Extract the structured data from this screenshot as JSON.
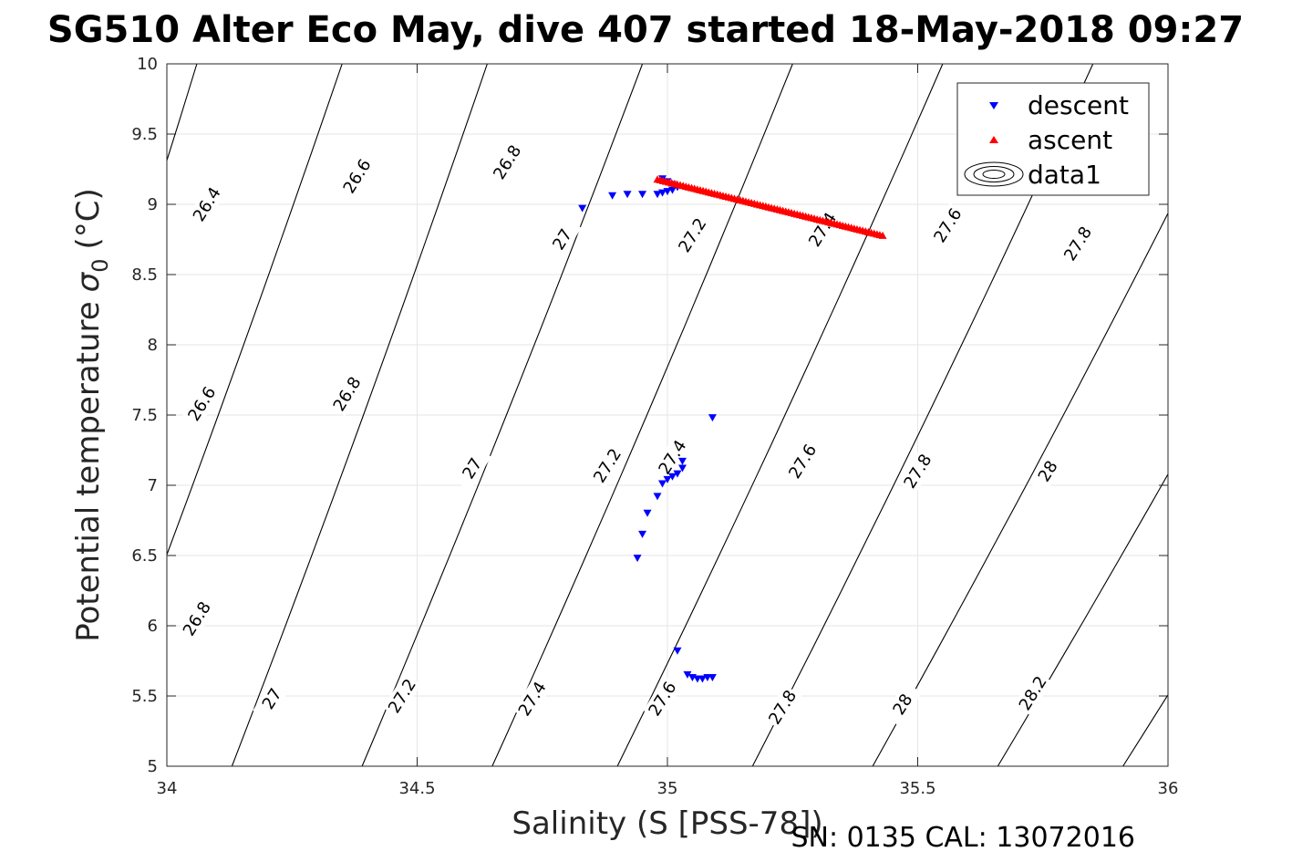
{
  "chart_data": {
    "type": "scatter",
    "title": "SG510 Alter Eco May, dive 407 started 18-May-2018 09:27",
    "xlabel": "Salinity (S [PSS-78])",
    "ylabel": "Potential temperature",
    "ylabel_symbol": "σ",
    "ylabel_subscript": "0",
    "ylabel_unit": "(°C)",
    "xlim": [
      34,
      36
    ],
    "ylim": [
      5,
      10
    ],
    "xticks": [
      34,
      34.5,
      35,
      35.5,
      36
    ],
    "xtick_labels": [
      "34",
      "34.5",
      "35",
      "35.5",
      "36"
    ],
    "yticks": [
      5,
      5.5,
      6,
      6.5,
      7,
      7.5,
      8,
      8.5,
      9,
      9.5,
      10
    ],
    "ytick_labels": [
      "5",
      "5.5",
      "6",
      "6.5",
      "7",
      "7.5",
      "8",
      "8.5",
      "9",
      "9.5",
      "10"
    ],
    "grid": true,
    "legend_position": "top-right",
    "legend": [
      {
        "label": "descent",
        "marker": "triangle-down",
        "color": "#0000ff"
      },
      {
        "label": "ascent",
        "marker": "triangle-up",
        "color": "#ff0000"
      },
      {
        "label": "data1",
        "marker": "contour",
        "color": "#000000"
      }
    ],
    "footer": "SN: 0135  CAL: 13072016",
    "contours": {
      "color": "#000000",
      "levels": [
        {
          "x_at_5": 33.6,
          "x_at_10": 34.06
        },
        {
          "x_at_5": 33.84,
          "x_at_10": 34.35
        },
        {
          "x_at_5": 34.13,
          "x_at_10": 34.64
        },
        {
          "x_at_5": 34.39,
          "x_at_10": 34.95
        },
        {
          "x_at_5": 34.65,
          "x_at_10": 35.25
        },
        {
          "x_at_5": 34.9,
          "x_at_10": 35.55
        },
        {
          "x_at_5": 35.17,
          "x_at_10": 35.85
        },
        {
          "x_at_5": 35.41,
          "x_at_10": 36.15
        },
        {
          "x_at_5": 35.66,
          "x_at_10": 36.45
        },
        {
          "x_at_5": 35.91,
          "x_at_10": 36.75
        }
      ],
      "labels": [
        {
          "text": "26.4",
          "s": 34.08,
          "t": 9.0
        },
        {
          "text": "26.6",
          "s": 34.38,
          "t": 9.2
        },
        {
          "text": "26.8",
          "s": 34.68,
          "t": 9.3
        },
        {
          "text": "27",
          "s": 34.79,
          "t": 8.75
        },
        {
          "text": "27.2",
          "s": 35.05,
          "t": 8.78
        },
        {
          "text": "27.4",
          "s": 35.31,
          "t": 8.82
        },
        {
          "text": "27.6",
          "s": 35.56,
          "t": 8.85
        },
        {
          "text": "27.8",
          "s": 35.82,
          "t": 8.72
        },
        {
          "text": "26.6",
          "s": 34.07,
          "t": 7.58
        },
        {
          "text": "26.8",
          "s": 34.36,
          "t": 7.65
        },
        {
          "text": "27",
          "s": 34.61,
          "t": 7.12
        },
        {
          "text": "27.2",
          "s": 34.88,
          "t": 7.14
        },
        {
          "text": "27.4",
          "s": 35.01,
          "t": 7.2
        },
        {
          "text": "27.6",
          "s": 35.27,
          "t": 7.17
        },
        {
          "text": "27.8",
          "s": 35.5,
          "t": 7.1
        },
        {
          "text": "28",
          "s": 35.76,
          "t": 7.1
        },
        {
          "text": "26.8",
          "s": 34.06,
          "t": 6.05
        },
        {
          "text": "27",
          "s": 34.21,
          "t": 5.48
        },
        {
          "text": "27.2",
          "s": 34.47,
          "t": 5.5
        },
        {
          "text": "27.4",
          "s": 34.73,
          "t": 5.48
        },
        {
          "text": "27.6",
          "s": 34.99,
          "t": 5.48
        },
        {
          "text": "27.8",
          "s": 35.23,
          "t": 5.42
        },
        {
          "text": "28",
          "s": 35.47,
          "t": 5.44
        },
        {
          "text": "28.2",
          "s": 35.73,
          "t": 5.52
        }
      ]
    },
    "series": [
      {
        "name": "descent",
        "marker": "triangle-down",
        "color": "#0000ff",
        "x": [
          34.83,
          34.89,
          34.92,
          34.95,
          34.98,
          34.99,
          35.0,
          35.01,
          35.02,
          35.01,
          35.0,
          34.99,
          35.09,
          35.03,
          35.03,
          35.02,
          35.01,
          35.0,
          34.99,
          34.98,
          34.96,
          34.95,
          34.94,
          35.02,
          35.04,
          35.05,
          35.06,
          35.07,
          35.08,
          35.09
        ],
        "y": [
          8.97,
          9.06,
          9.07,
          9.07,
          9.07,
          9.08,
          9.09,
          9.1,
          9.12,
          9.14,
          9.16,
          9.18,
          7.48,
          7.17,
          7.12,
          7.08,
          7.06,
          7.04,
          7.01,
          6.92,
          6.8,
          6.65,
          6.48,
          5.82,
          5.65,
          5.63,
          5.62,
          5.62,
          5.63,
          5.63
        ]
      },
      {
        "name": "ascent",
        "marker": "triangle-up",
        "color": "#ff0000",
        "x_start": 34.98,
        "y_start": 9.18,
        "x_end": 35.43,
        "y_end": 8.78,
        "count": 80
      }
    ]
  }
}
